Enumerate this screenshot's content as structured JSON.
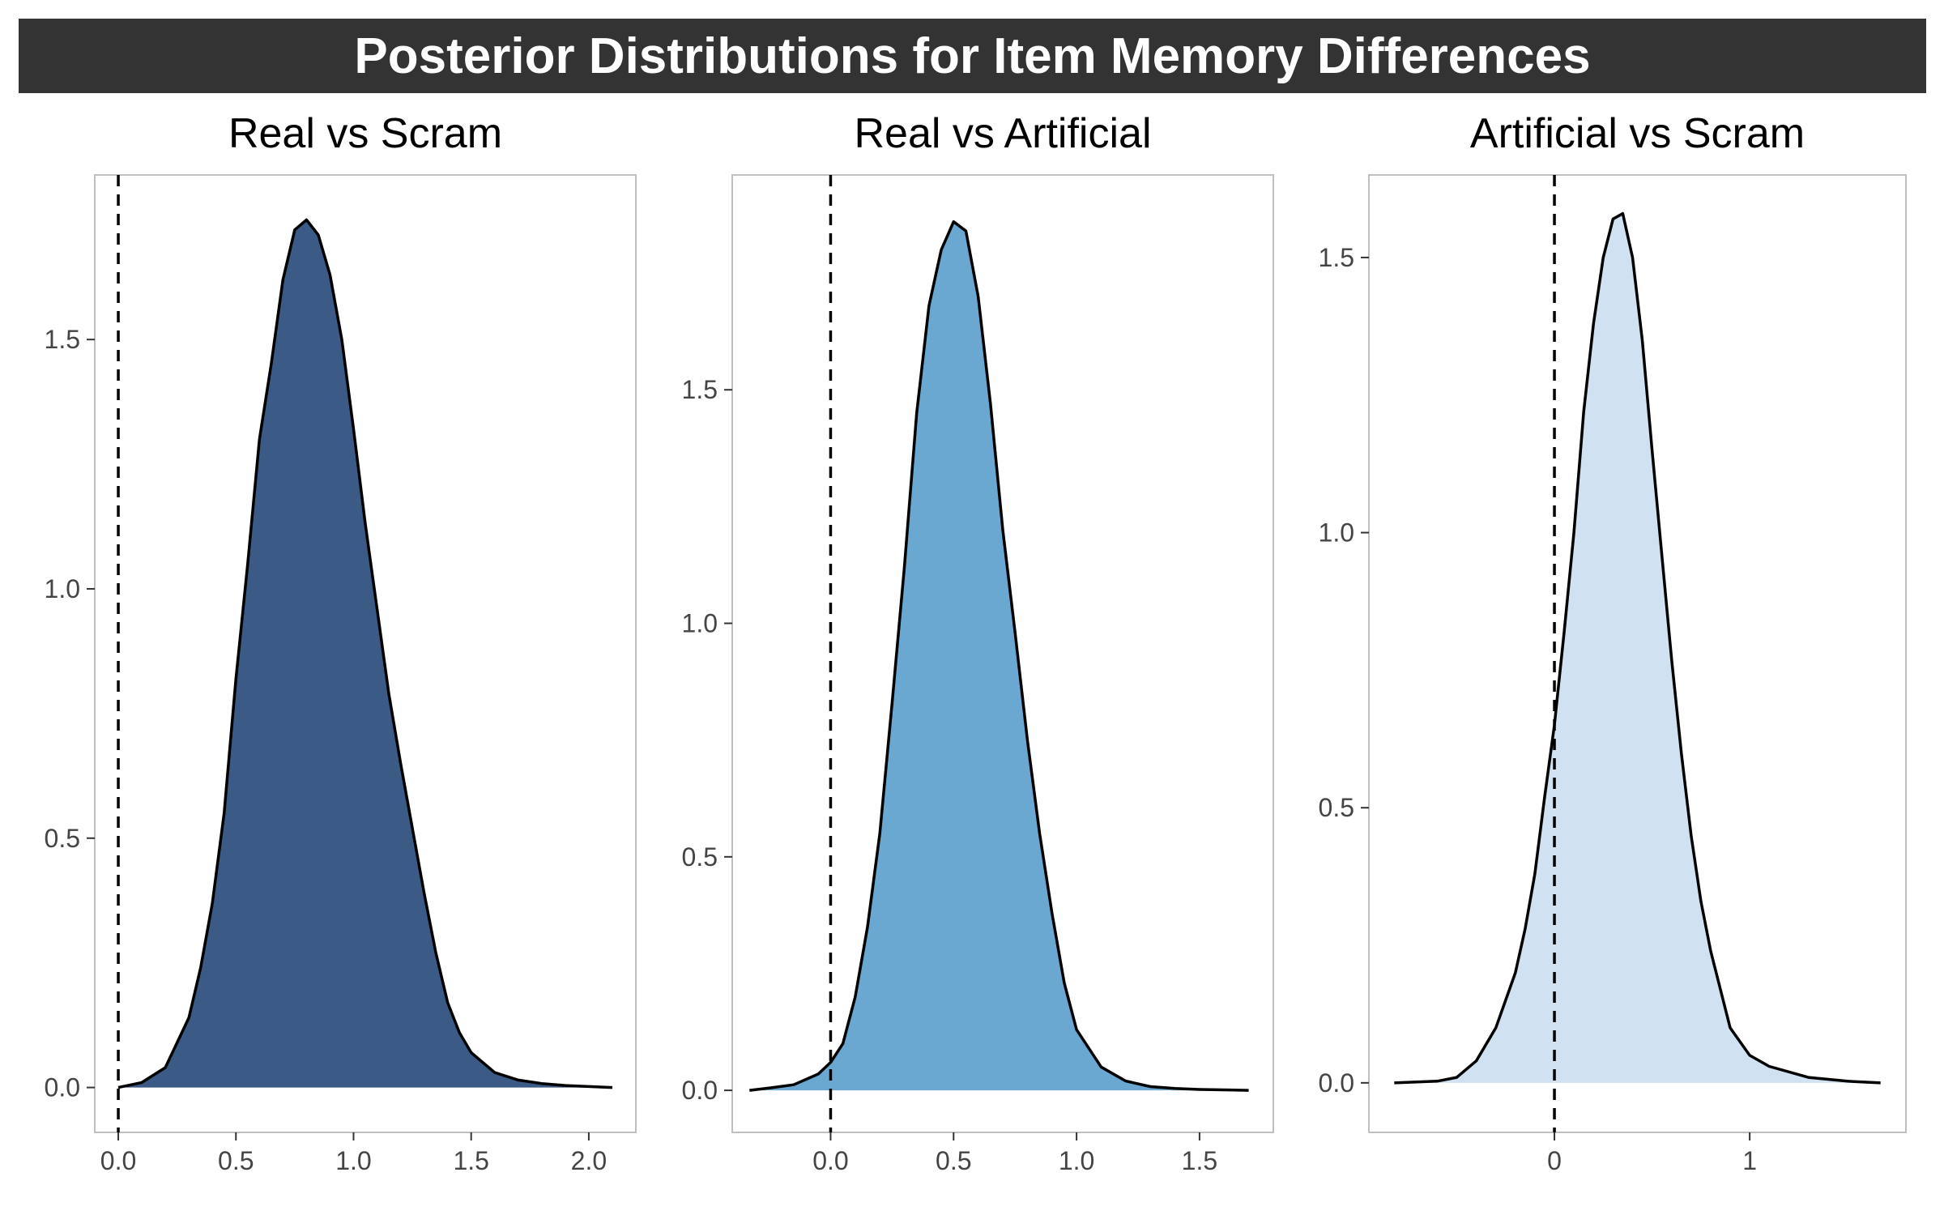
{
  "title": "Posterior Distributions for Item Memory Differences",
  "chart_data": [
    {
      "type": "area",
      "title": "Real vs Scram",
      "color": "#3B5B86",
      "xlim": [
        -0.1,
        2.2
      ],
      "ylim": [
        -0.09,
        1.83
      ],
      "xticks": [
        0.0,
        0.5,
        1.0,
        1.5,
        2.0
      ],
      "xtick_labels": [
        "0.0",
        "0.5",
        "1.0",
        "1.5",
        "2.0"
      ],
      "yticks": [
        0.0,
        0.5,
        1.0,
        1.5
      ],
      "ytick_labels": [
        "0.0",
        "0.5",
        "1.0",
        "1.5"
      ],
      "reference_line_x": 0,
      "x": [
        0.0,
        0.1,
        0.2,
        0.3,
        0.35,
        0.4,
        0.45,
        0.5,
        0.55,
        0.6,
        0.65,
        0.7,
        0.75,
        0.8,
        0.85,
        0.9,
        0.95,
        1.0,
        1.05,
        1.1,
        1.15,
        1.2,
        1.25,
        1.3,
        1.35,
        1.4,
        1.45,
        1.5,
        1.55,
        1.6,
        1.7,
        1.8,
        1.9,
        2.0,
        2.1
      ],
      "y": [
        0.0,
        0.01,
        0.04,
        0.14,
        0.24,
        0.37,
        0.55,
        0.82,
        1.05,
        1.3,
        1.45,
        1.62,
        1.72,
        1.74,
        1.71,
        1.63,
        1.5,
        1.32,
        1.13,
        0.96,
        0.79,
        0.65,
        0.52,
        0.39,
        0.27,
        0.17,
        0.11,
        0.07,
        0.05,
        0.03,
        0.015,
        0.008,
        0.004,
        0.002,
        0.0
      ]
    },
    {
      "type": "area",
      "title": "Real vs Artificial",
      "color": "#6AA8D2",
      "xlim": [
        -0.4,
        1.8
      ],
      "ylim": [
        -0.09,
        1.96
      ],
      "xticks": [
        0.0,
        0.5,
        1.0,
        1.5
      ],
      "xtick_labels": [
        "0.0",
        "0.5",
        "1.0",
        "1.5"
      ],
      "yticks": [
        0.0,
        0.5,
        1.0,
        1.5
      ],
      "ytick_labels": [
        "0.0",
        "0.5",
        "1.0",
        "1.5"
      ],
      "reference_line_x": 0,
      "x": [
        -0.33,
        -0.25,
        -0.15,
        -0.05,
        0.0,
        0.05,
        0.1,
        0.15,
        0.2,
        0.25,
        0.3,
        0.35,
        0.4,
        0.45,
        0.5,
        0.55,
        0.6,
        0.65,
        0.7,
        0.75,
        0.8,
        0.85,
        0.9,
        0.95,
        1.0,
        1.1,
        1.2,
        1.3,
        1.4,
        1.5,
        1.7
      ],
      "y": [
        0.0,
        0.005,
        0.012,
        0.035,
        0.06,
        0.1,
        0.2,
        0.35,
        0.55,
        0.83,
        1.12,
        1.45,
        1.68,
        1.8,
        1.86,
        1.84,
        1.7,
        1.47,
        1.2,
        0.98,
        0.75,
        0.55,
        0.38,
        0.23,
        0.13,
        0.05,
        0.02,
        0.008,
        0.004,
        0.002,
        0.0
      ]
    },
    {
      "type": "area",
      "title": "Artificial vs Scram",
      "color": "#D0E1F2",
      "xlim": [
        -0.95,
        1.8
      ],
      "ylim": [
        -0.09,
        1.65
      ],
      "xticks": [
        0,
        1
      ],
      "xtick_labels": [
        "0",
        "1"
      ],
      "yticks": [
        0.0,
        0.5,
        1.0,
        1.5
      ],
      "ytick_labels": [
        "0.0",
        "0.5",
        "1.0",
        "1.5"
      ],
      "reference_line_x": 0,
      "x": [
        -0.82,
        -0.6,
        -0.5,
        -0.4,
        -0.3,
        -0.2,
        -0.15,
        -0.1,
        -0.05,
        0.0,
        0.05,
        0.1,
        0.15,
        0.2,
        0.25,
        0.3,
        0.35,
        0.4,
        0.45,
        0.5,
        0.55,
        0.6,
        0.65,
        0.7,
        0.75,
        0.8,
        0.9,
        1.0,
        1.1,
        1.3,
        1.5,
        1.67
      ],
      "y": [
        0.0,
        0.003,
        0.01,
        0.04,
        0.1,
        0.2,
        0.28,
        0.38,
        0.52,
        0.65,
        0.82,
        1.0,
        1.22,
        1.38,
        1.5,
        1.57,
        1.58,
        1.5,
        1.35,
        1.15,
        0.96,
        0.77,
        0.6,
        0.45,
        0.33,
        0.24,
        0.1,
        0.05,
        0.03,
        0.01,
        0.003,
        0.0
      ]
    }
  ]
}
